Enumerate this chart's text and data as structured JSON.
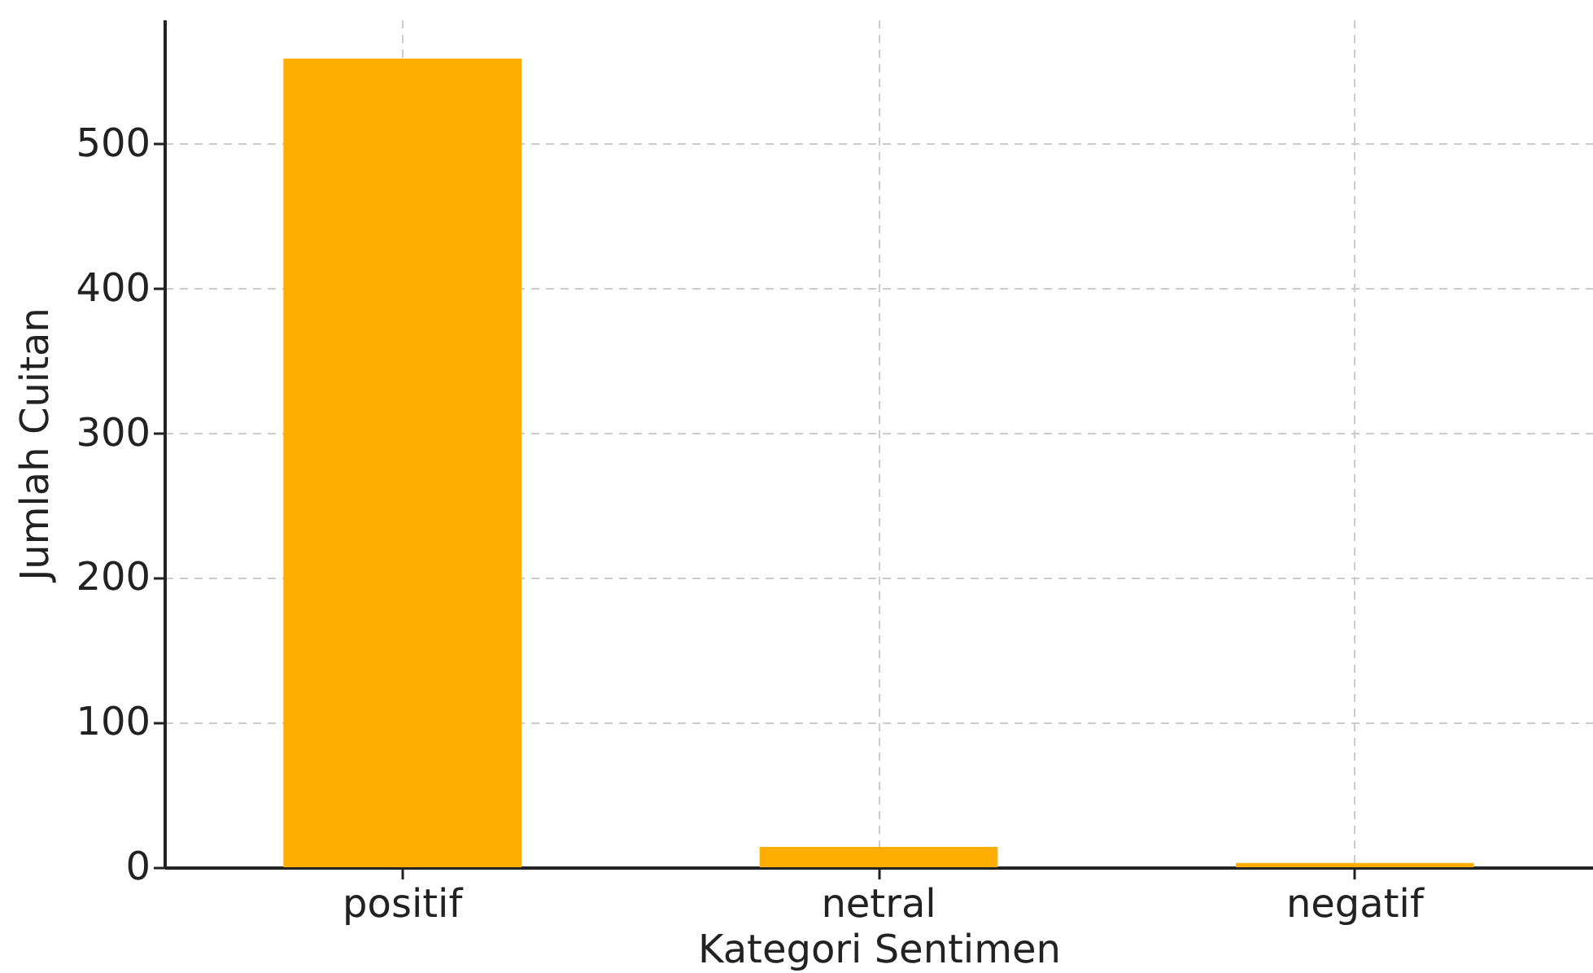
{
  "chart_data": {
    "type": "bar",
    "xlabel": "Kategori Sentimen",
    "ylabel": "Jumlah Cuitan",
    "categories": [
      "positif",
      "netral",
      "negatif"
    ],
    "values": [
      559,
      14,
      3
    ],
    "color": "#ffae00",
    "ylim": [
      0,
      586
    ],
    "yticks": [
      0,
      100,
      200,
      300,
      400,
      500
    ],
    "grid": true
  }
}
